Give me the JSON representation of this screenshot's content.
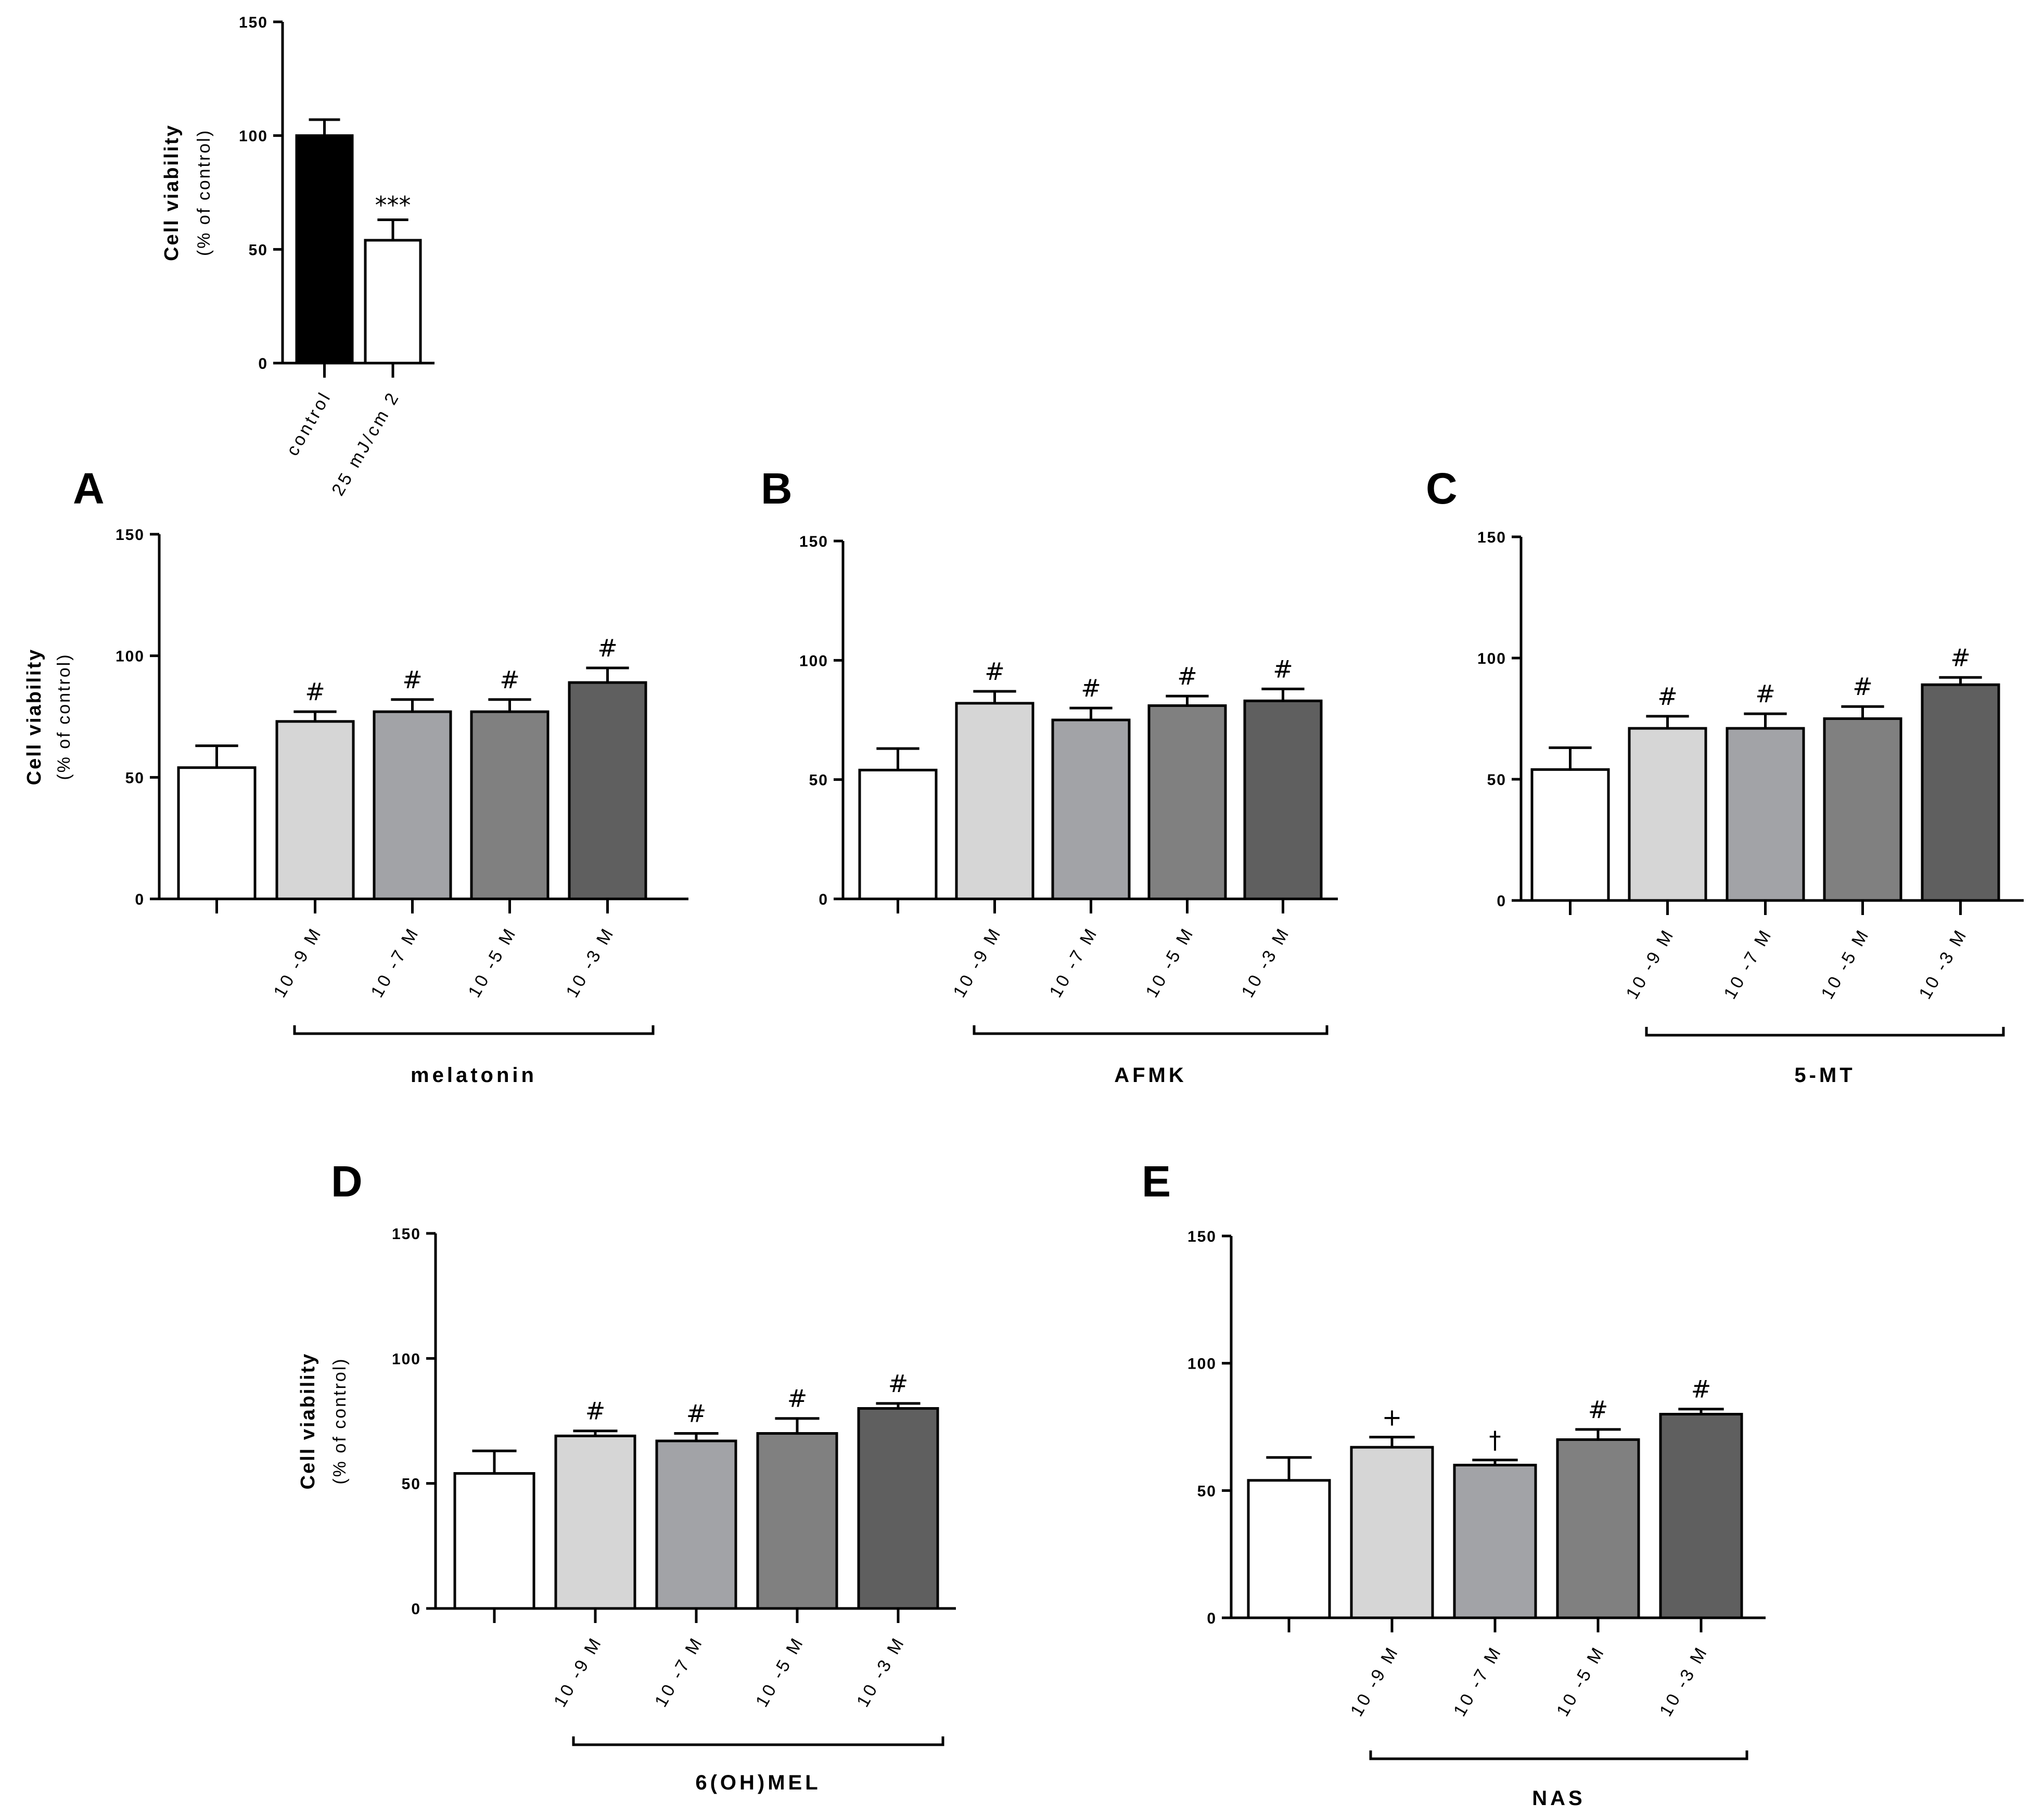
{
  "colors": {
    "control_fill": "#000000",
    "damage_fill": "#ffffff",
    "conc_fills": [
      "#d6d6d6",
      "#a2a3a7",
      "#808080",
      "#5f5f5f"
    ],
    "axis": "#000000"
  },
  "axis_common": {
    "ylabel": "Cell viability",
    "ylabel_sub": "(% of control)",
    "ticks": [
      "0",
      "50",
      "100",
      "150"
    ],
    "ylim": [
      0,
      150
    ]
  },
  "chart_data": [
    {
      "id": "top",
      "type": "bar",
      "panel": "",
      "categories": [
        "control",
        "25 mJ/cm 2"
      ],
      "values": [
        100,
        54
      ],
      "errors": [
        7,
        9
      ],
      "annotations": [
        "",
        "***"
      ],
      "ylabel": "Cell viability",
      "ylabel_sub": "(% of control)",
      "ylim": [
        0,
        150
      ],
      "group_label": ""
    },
    {
      "id": "A",
      "type": "bar",
      "panel": "A",
      "categories": [
        "",
        "10 -9 M",
        "10 -7 M",
        "10 -5 M",
        "10 -3 M"
      ],
      "values": [
        54,
        73,
        77,
        77,
        89
      ],
      "errors": [
        9,
        4,
        5,
        5,
        6
      ],
      "annotations": [
        "",
        "#",
        "#",
        "#",
        "#"
      ],
      "ylabel": "Cell viability",
      "ylabel_sub": "(% of control)",
      "ylim": [
        0,
        150
      ],
      "group_label": "melatonin"
    },
    {
      "id": "B",
      "type": "bar",
      "panel": "B",
      "categories": [
        "",
        "10 -9 M",
        "10 -7 M",
        "10 -5 M",
        "10 -3 M"
      ],
      "values": [
        54,
        82,
        75,
        81,
        83
      ],
      "errors": [
        9,
        5,
        5,
        4,
        5
      ],
      "annotations": [
        "",
        "#",
        "#",
        "#",
        "#"
      ],
      "ylabel": "",
      "ylabel_sub": "",
      "ylim": [
        0,
        150
      ],
      "group_label": "AFMK"
    },
    {
      "id": "C",
      "type": "bar",
      "panel": "C",
      "categories": [
        "",
        "10 -9 M",
        "10 -7 M",
        "10 -5 M",
        "10 -3 M"
      ],
      "values": [
        54,
        71,
        71,
        75,
        89
      ],
      "errors": [
        9,
        5,
        6,
        5,
        3
      ],
      "annotations": [
        "",
        "#",
        "#",
        "#",
        "#"
      ],
      "ylabel": "",
      "ylabel_sub": "",
      "ylim": [
        0,
        150
      ],
      "group_label": "5-MT"
    },
    {
      "id": "D",
      "type": "bar",
      "panel": "D",
      "categories": [
        "",
        "10 -9 M",
        "10 -7 M",
        "10 -5 M",
        "10 -3 M"
      ],
      "values": [
        54,
        69,
        67,
        70,
        80
      ],
      "errors": [
        9,
        2,
        3,
        6,
        2
      ],
      "annotations": [
        "",
        "#",
        "#",
        "#",
        "#"
      ],
      "ylabel": "Cell viability",
      "ylabel_sub": "(% of control)",
      "ylim": [
        0,
        150
      ],
      "group_label": "6(OH)MEL"
    },
    {
      "id": "E",
      "type": "bar",
      "panel": "E",
      "categories": [
        "",
        "10 -9 M",
        "10 -7 M",
        "10 -5 M",
        "10 -3 M"
      ],
      "values": [
        54,
        67,
        60,
        70,
        80
      ],
      "errors": [
        9,
        4,
        2,
        4,
        2
      ],
      "annotations": [
        "",
        "+",
        "†",
        "#",
        "#"
      ],
      "ylabel": "",
      "ylabel_sub": "",
      "ylim": [
        0,
        150
      ],
      "group_label": "NAS"
    }
  ]
}
